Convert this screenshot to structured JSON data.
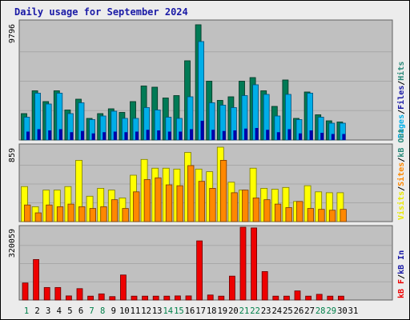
{
  "title": "Daily usage for September 2024",
  "colors": {
    "title": "#1a1aa6",
    "plot_bg": "#c0c0c0",
    "grid": "#a8a8a8",
    "hits": "#00aee8",
    "hits_edge": "#004e7a",
    "files": "#007a55",
    "files_edge": "#003322",
    "pages": "#0000aa",
    "visits": "#ffff00",
    "visits_edge": "#7a7a00",
    "sites": "#ff8800",
    "sites_edge": "#7a3a00",
    "kb": "#ee0000",
    "kb_edge": "#660000",
    "weekend_day": "#00804a",
    "weekday": "#000000"
  },
  "chart_data": [
    {
      "type": "bar",
      "name": "hits-files-pages",
      "max_label": "9796",
      "ylim": [
        0,
        9796
      ],
      "legend": [
        {
          "label": "Pages",
          "color_key": "pages_legend"
        },
        {
          "label": "Files",
          "color_key": "files_legend"
        },
        {
          "label": "Hits",
          "color_key": "hits_legend"
        }
      ],
      "legend_colors": {
        "pages_legend": "#00aee8",
        "files_legend": "#1a1aa6",
        "hits_legend": "#2a8a7a"
      },
      "series": [
        {
          "name": "Files",
          "color_key": "files",
          "values": [
            2200,
            4100,
            3200,
            4100,
            2500,
            3400,
            1800,
            2200,
            2600,
            2300,
            3200,
            4500,
            4400,
            3500,
            3700,
            6600,
            9600,
            4900,
            3300,
            3600,
            4900,
            5200,
            4100,
            2800,
            5000,
            1800,
            4000,
            2100,
            1600,
            1500
          ]
        },
        {
          "name": "Hits",
          "color_key": "hits",
          "values": [
            1900,
            3900,
            3000,
            3900,
            2200,
            3100,
            1700,
            2000,
            2400,
            1800,
            1800,
            2700,
            2500,
            1900,
            1800,
            3600,
            8200,
            3100,
            2900,
            2700,
            3700,
            4600,
            3800,
            2000,
            3800,
            1700,
            3900,
            1900,
            1400,
            1400
          ]
        },
        {
          "name": "Pages",
          "color_key": "pages",
          "values": [
            700,
            900,
            800,
            900,
            650,
            750,
            550,
            650,
            700,
            650,
            700,
            850,
            800,
            700,
            700,
            900,
            1600,
            850,
            750,
            800,
            950,
            1000,
            850,
            650,
            900,
            550,
            800,
            600,
            500,
            500
          ]
        }
      ]
    },
    {
      "type": "bar",
      "name": "visits-sites",
      "max_label": "859",
      "ylim": [
        0,
        859
      ],
      "legend": [
        {
          "label": "Visits",
          "color_key": "visits_legend"
        },
        {
          "label": "Sites",
          "color_key": "sites_legend"
        },
        {
          "label": "kB Out",
          "color_key": "kbout_legend"
        }
      ],
      "legend_colors": {
        "visits_legend": "#e8e800",
        "sites_legend": "#ff8800",
        "kbout_legend": "#2a8a7a"
      },
      "series": [
        {
          "name": "Visits",
          "color_key": "visits",
          "values": [
            400,
            170,
            360,
            360,
            400,
            700,
            290,
            380,
            360,
            270,
            530,
            710,
            610,
            610,
            600,
            790,
            600,
            570,
            850,
            450,
            360,
            610,
            380,
            370,
            390,
            230,
            410,
            340,
            330,
            330
          ]
        },
        {
          "name": "Sites",
          "color_key": "sites",
          "values": [
            190,
            100,
            190,
            170,
            200,
            170,
            150,
            170,
            250,
            150,
            340,
            480,
            500,
            420,
            410,
            640,
            460,
            380,
            700,
            330,
            360,
            270,
            250,
            200,
            160,
            230,
            150,
            140,
            130,
            140
          ]
        }
      ]
    },
    {
      "type": "bar",
      "name": "kbytes",
      "max_label": "320059",
      "ylim": [
        0,
        320059
      ],
      "legend": [
        {
          "label": "kB F",
          "color_key": "kbf_legend"
        },
        {
          "label": "kB In",
          "color_key": "kbin_legend"
        }
      ],
      "legend_sep_colors": [
        "#000000",
        "#000000"
      ],
      "legend_colors": {
        "kbf_legend": "#ee0000",
        "kbin_legend": "#1a1aa6"
      },
      "series": [
        {
          "name": "kB F",
          "color_key": "kb",
          "values": [
            75000,
            178000,
            55000,
            55000,
            18000,
            50000,
            17000,
            27000,
            15000,
            110000,
            17000,
            17000,
            17000,
            17000,
            18000,
            18000,
            260000,
            22000,
            17000,
            105000,
            320059,
            317000,
            125000,
            17000,
            17000,
            40000,
            17000,
            25000,
            17000,
            17000
          ]
        }
      ]
    }
  ],
  "days": [
    {
      "label": "1",
      "weekend": true
    },
    {
      "label": "2",
      "weekend": false
    },
    {
      "label": "3",
      "weekend": false
    },
    {
      "label": "4",
      "weekend": false
    },
    {
      "label": "5",
      "weekend": false
    },
    {
      "label": "6",
      "weekend": false
    },
    {
      "label": "7",
      "weekend": true
    },
    {
      "label": "8",
      "weekend": true
    },
    {
      "label": "9",
      "weekend": false
    },
    {
      "label": "10",
      "weekend": false
    },
    {
      "label": "11",
      "weekend": false
    },
    {
      "label": "12",
      "weekend": false
    },
    {
      "label": "13",
      "weekend": false
    },
    {
      "label": "14",
      "weekend": true
    },
    {
      "label": "15",
      "weekend": true
    },
    {
      "label": "16",
      "weekend": false
    },
    {
      "label": "17",
      "weekend": false
    },
    {
      "label": "18",
      "weekend": false
    },
    {
      "label": "19",
      "weekend": false
    },
    {
      "label": "20",
      "weekend": false
    },
    {
      "label": "21",
      "weekend": true
    },
    {
      "label": "22",
      "weekend": true
    },
    {
      "label": "23",
      "weekend": false
    },
    {
      "label": "24",
      "weekend": false
    },
    {
      "label": "25",
      "weekend": false
    },
    {
      "label": "26",
      "weekend": false
    },
    {
      "label": "27",
      "weekend": false
    },
    {
      "label": "28",
      "weekend": true
    },
    {
      "label": "29",
      "weekend": true
    },
    {
      "label": "30",
      "weekend": false
    },
    {
      "label": "31",
      "weekend": false
    }
  ]
}
